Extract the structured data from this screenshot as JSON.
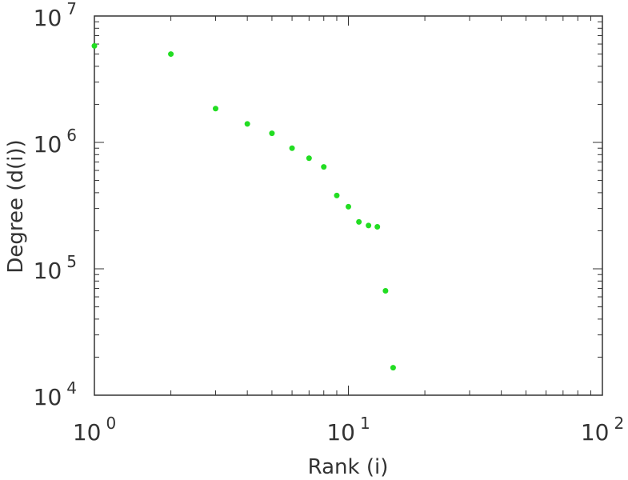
{
  "chart_data": {
    "type": "scatter",
    "title": "",
    "xlabel": "Rank (i)",
    "ylabel": "Degree (d(i))",
    "x_scale": "log",
    "y_scale": "log",
    "xlim": [
      1,
      100
    ],
    "ylim": [
      10000,
      10000000
    ],
    "grid": false,
    "legend": "none",
    "point_color": "#22dd22",
    "x_ticks": [
      {
        "base": "10",
        "exp": "0",
        "value": 1
      },
      {
        "base": "10",
        "exp": "1",
        "value": 10
      },
      {
        "base": "10",
        "exp": "2",
        "value": 100
      }
    ],
    "y_ticks": [
      {
        "base": "10",
        "exp": "4",
        "value": 10000
      },
      {
        "base": "10",
        "exp": "5",
        "value": 100000
      },
      {
        "base": "10",
        "exp": "6",
        "value": 1000000
      },
      {
        "base": "10",
        "exp": "7",
        "value": 10000000
      }
    ],
    "series": [
      {
        "x": [
          1,
          2,
          3,
          4,
          5,
          6,
          7,
          8,
          9,
          10,
          11,
          12,
          13,
          14,
          15
        ],
        "y": [
          5800000,
          5000000,
          1850000,
          1400000,
          1180000,
          900000,
          750000,
          640000,
          380000,
          310000,
          235000,
          220000,
          215000,
          67000,
          16500
        ]
      }
    ]
  }
}
